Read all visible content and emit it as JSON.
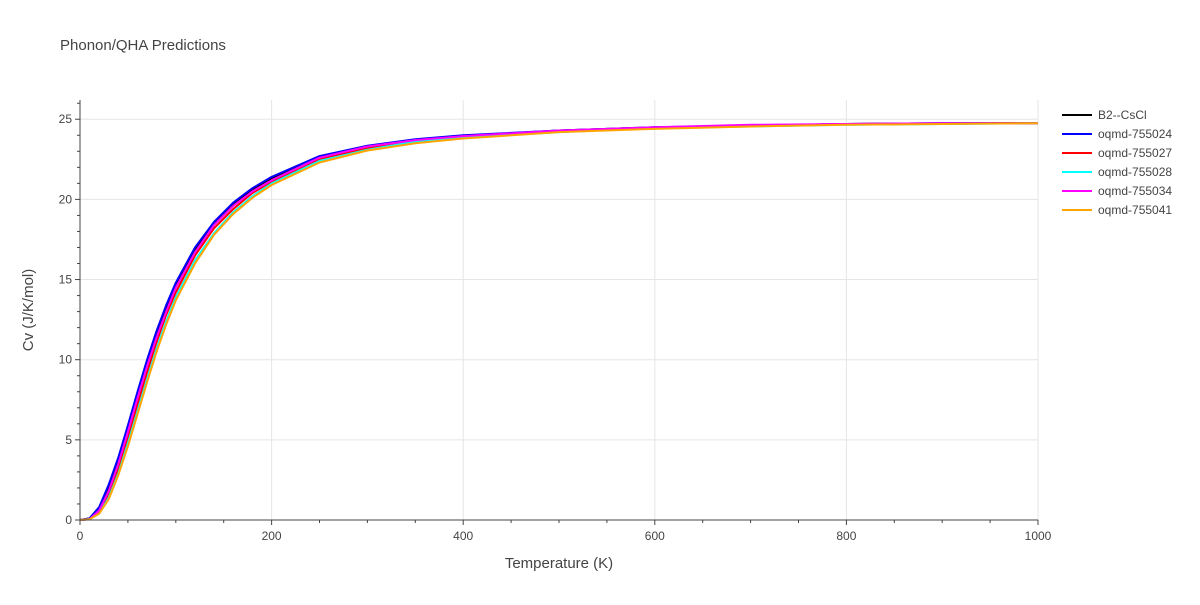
{
  "chart_data": {
    "type": "line",
    "title": "Phonon/QHA Predictions",
    "xlabel": "Temperature (K)",
    "ylabel": "Cv (J/K/mol)",
    "xlim": [
      0,
      1000
    ],
    "ylim": [
      0,
      26.2
    ],
    "x_ticks": [
      0,
      200,
      400,
      600,
      800,
      1000
    ],
    "y_ticks": [
      0,
      5,
      10,
      15,
      20,
      25
    ],
    "grid": true,
    "legend_position": "top-right",
    "series": [
      {
        "name": "B2--CsCl",
        "color": "#000000",
        "x": [
          0,
          10,
          20,
          30,
          40,
          50,
          60,
          70,
          80,
          90,
          100,
          120,
          140,
          160,
          180,
          200,
          250,
          300,
          350,
          400,
          500,
          600,
          700,
          800,
          900,
          1000
        ],
        "y": [
          0,
          0.1,
          0.8,
          2.1,
          3.8,
          5.8,
          7.9,
          9.9,
          11.7,
          13.3,
          14.7,
          16.9,
          18.5,
          19.7,
          20.6,
          21.3,
          22.6,
          23.3,
          23.7,
          23.95,
          24.3,
          24.5,
          24.6,
          24.7,
          24.75,
          24.75
        ]
      },
      {
        "name": "oqmd-755024",
        "color": "#0000ff",
        "x": [
          0,
          10,
          20,
          30,
          40,
          50,
          60,
          70,
          80,
          90,
          100,
          120,
          140,
          160,
          180,
          200,
          250,
          300,
          350,
          400,
          500,
          600,
          700,
          800,
          900,
          1000
        ],
        "y": [
          0,
          0.1,
          0.8,
          2.2,
          3.9,
          5.9,
          8.0,
          10.0,
          11.8,
          13.4,
          14.8,
          17.0,
          18.6,
          19.8,
          20.7,
          21.4,
          22.7,
          23.35,
          23.75,
          24.0,
          24.3,
          24.5,
          24.6,
          24.7,
          24.75,
          24.75
        ]
      },
      {
        "name": "oqmd-755027",
        "color": "#ff0000",
        "x": [
          0,
          10,
          20,
          30,
          40,
          50,
          60,
          70,
          80,
          90,
          100,
          120,
          140,
          160,
          180,
          200,
          250,
          300,
          350,
          400,
          500,
          600,
          700,
          800,
          900,
          1000
        ],
        "y": [
          0,
          0.05,
          0.5,
          1.6,
          3.2,
          5.1,
          7.2,
          9.2,
          11.1,
          12.8,
          14.2,
          16.5,
          18.2,
          19.4,
          20.4,
          21.1,
          22.5,
          23.2,
          23.65,
          23.9,
          24.25,
          24.45,
          24.6,
          24.7,
          24.72,
          24.75
        ]
      },
      {
        "name": "oqmd-755028",
        "color": "#00ffff",
        "x": [
          0,
          10,
          20,
          30,
          40,
          50,
          60,
          70,
          80,
          90,
          100,
          120,
          140,
          160,
          180,
          200,
          250,
          300,
          350,
          400,
          500,
          600,
          700,
          800,
          900,
          1000
        ],
        "y": [
          0,
          0.05,
          0.4,
          1.4,
          2.9,
          4.8,
          6.8,
          8.8,
          10.7,
          12.4,
          13.9,
          16.2,
          17.9,
          19.2,
          20.2,
          21.0,
          22.4,
          23.1,
          23.6,
          23.85,
          24.2,
          24.45,
          24.55,
          24.65,
          24.7,
          24.75
        ]
      },
      {
        "name": "oqmd-755034",
        "color": "#ff00ff",
        "x": [
          0,
          10,
          20,
          30,
          40,
          50,
          60,
          70,
          80,
          90,
          100,
          120,
          140,
          160,
          180,
          200,
          250,
          300,
          350,
          400,
          500,
          600,
          700,
          800,
          900,
          1000
        ],
        "y": [
          0,
          0.05,
          0.6,
          1.8,
          3.5,
          5.5,
          7.6,
          9.6,
          11.4,
          13.0,
          14.5,
          16.7,
          18.4,
          19.6,
          20.5,
          21.2,
          22.6,
          23.3,
          23.7,
          23.95,
          24.3,
          24.5,
          24.65,
          24.7,
          24.75,
          24.75
        ]
      },
      {
        "name": "oqmd-755041",
        "color": "#ffa500",
        "x": [
          0,
          10,
          20,
          30,
          40,
          50,
          60,
          70,
          80,
          90,
          100,
          120,
          140,
          160,
          180,
          200,
          250,
          300,
          350,
          400,
          500,
          600,
          700,
          800,
          900,
          1000
        ],
        "y": [
          0,
          0.05,
          0.4,
          1.3,
          2.8,
          4.6,
          6.6,
          8.6,
          10.5,
          12.2,
          13.7,
          16.0,
          17.8,
          19.1,
          20.1,
          20.9,
          22.3,
          23.05,
          23.5,
          23.8,
          24.2,
          24.4,
          24.55,
          24.65,
          24.7,
          24.75
        ]
      }
    ]
  }
}
